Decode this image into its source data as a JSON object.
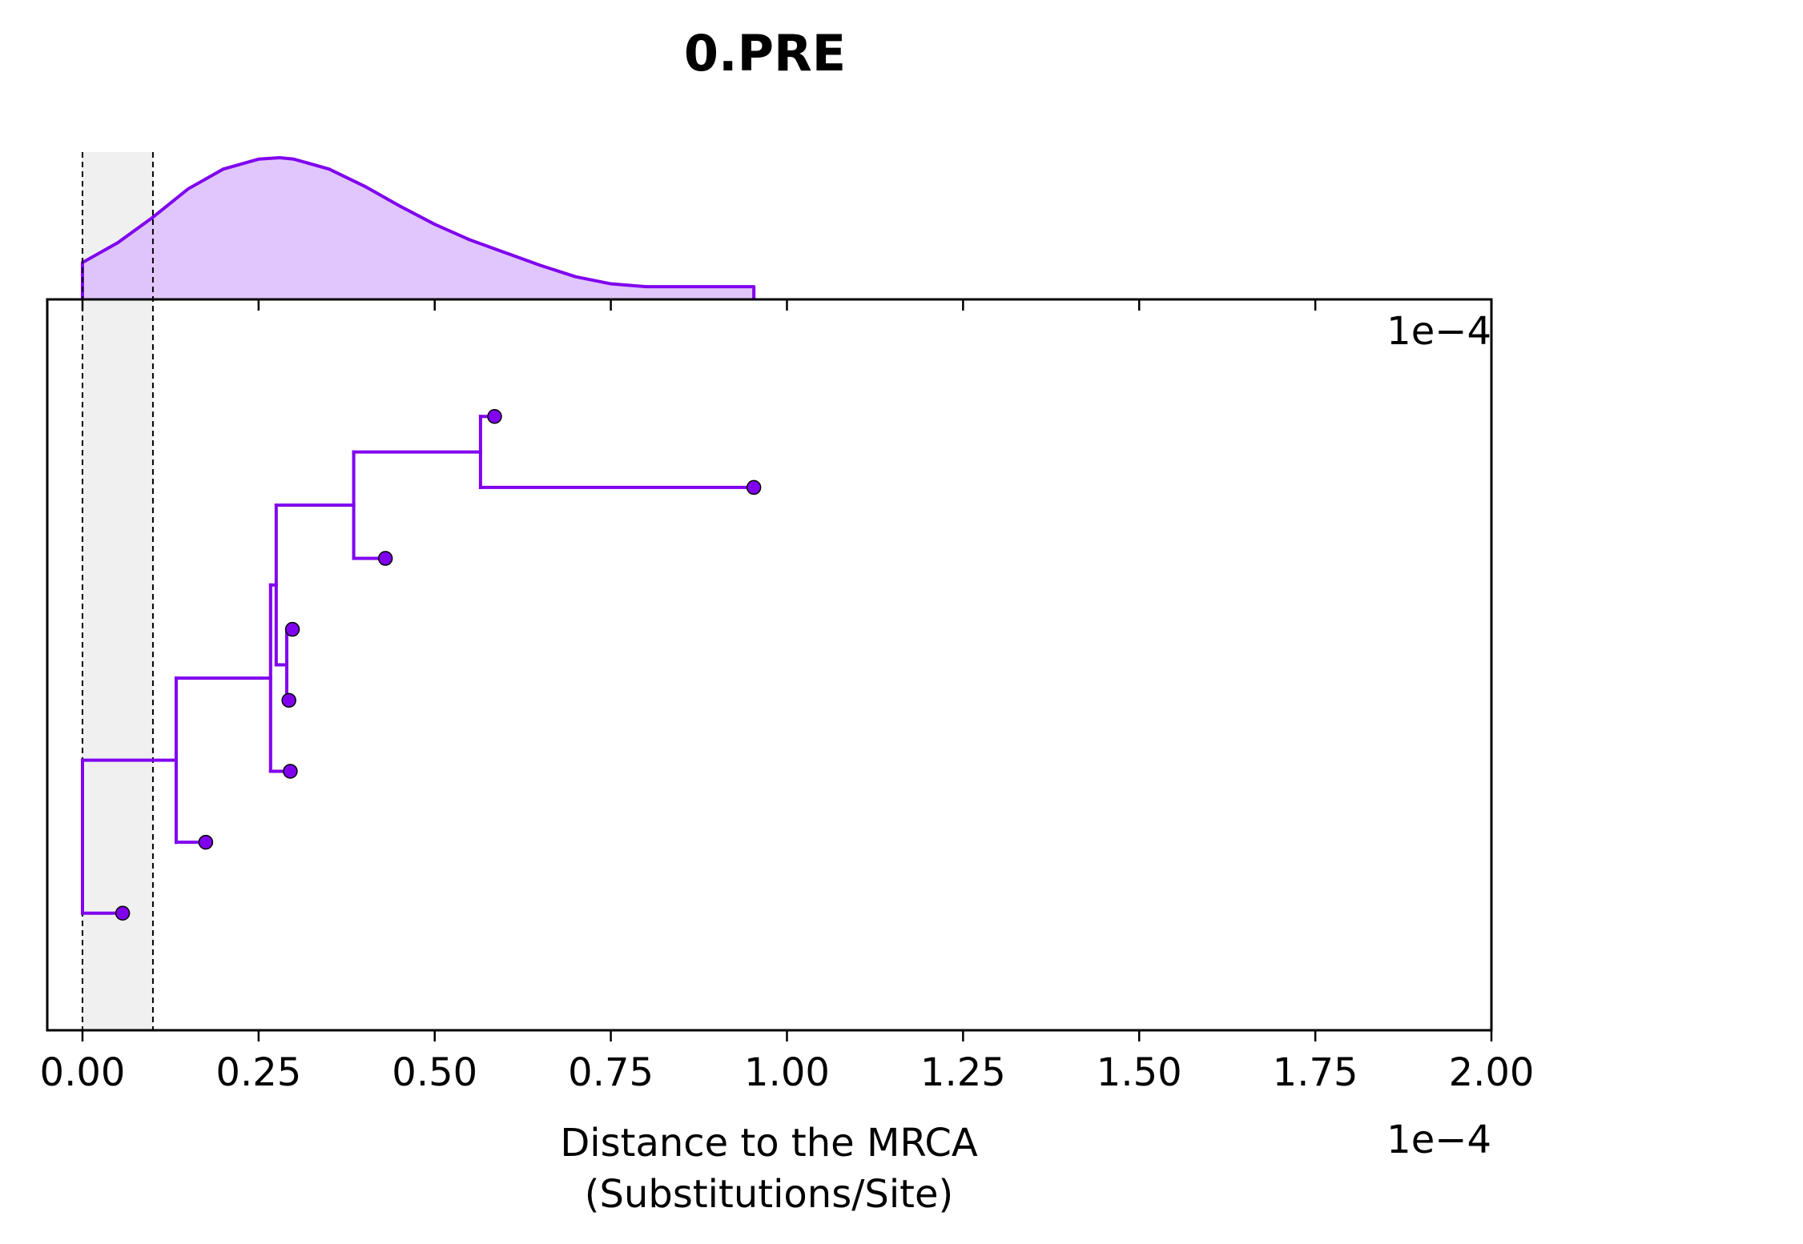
{
  "chart_data": {
    "type": "scatter",
    "subtype": "phylogenetic-tree-with-density",
    "title": "0.PRE",
    "xlabel_line1": "Distance to the MRCA",
    "xlabel_line2": "(Substitutions/Site)",
    "x_offset_label": "1e−4",
    "top_offset_label": "1e−4",
    "xlim": [
      -0.05,
      2.0
    ],
    "x_ticks": [
      0.0,
      0.25,
      0.5,
      0.75,
      1.0,
      1.25,
      1.5,
      1.75,
      2.0
    ],
    "x_tick_labels": [
      "0.00",
      "0.25",
      "0.50",
      "0.75",
      "1.00",
      "1.25",
      "1.50",
      "1.75",
      "2.00"
    ],
    "shaded_interval": [
      0.0,
      0.1
    ],
    "color": "#8000ee",
    "density_fill": "#dcbcfb",
    "shade_fill": "#f0f0f0",
    "tips": [
      {
        "x": 0.585,
        "y": 1
      },
      {
        "x": 0.953,
        "y": 2
      },
      {
        "x": 0.43,
        "y": 3
      },
      {
        "x": 0.298,
        "y": 4
      },
      {
        "x": 0.293,
        "y": 5
      },
      {
        "x": 0.295,
        "y": 6
      },
      {
        "x": 0.175,
        "y": 7
      },
      {
        "x": 0.057,
        "y": 8
      }
    ],
    "nodes": [
      {
        "x": 0.565,
        "y0": 1,
        "y1": 2
      },
      {
        "x": 0.385,
        "y0": 1.5,
        "y1": 3
      },
      {
        "x": 0.29,
        "y0": 4,
        "y1": 5
      },
      {
        "x": 0.275,
        "y0": 2.25,
        "y1": 4.5
      },
      {
        "x": 0.267,
        "y0": 3.375,
        "y1": 6
      },
      {
        "x": 0.133,
        "y0": 4.6875,
        "y1": 7
      },
      {
        "x": 0.0,
        "y0": 5.84375,
        "y1": 8
      }
    ],
    "branches": [
      {
        "x0": 0.565,
        "x1": 0.585,
        "y": 1
      },
      {
        "x0": 0.565,
        "x1": 0.953,
        "y": 2
      },
      {
        "x0": 0.385,
        "x1": 0.565,
        "y": 1.5
      },
      {
        "x0": 0.385,
        "x1": 0.43,
        "y": 3
      },
      {
        "x0": 0.29,
        "x1": 0.298,
        "y": 4
      },
      {
        "x0": 0.29,
        "x1": 0.293,
        "y": 5
      },
      {
        "x0": 0.275,
        "x1": 0.385,
        "y": 2.25
      },
      {
        "x0": 0.275,
        "x1": 0.29,
        "y": 4.5
      },
      {
        "x0": 0.267,
        "x1": 0.275,
        "y": 3.375
      },
      {
        "x0": 0.267,
        "x1": 0.295,
        "y": 6
      },
      {
        "x0": 0.133,
        "x1": 0.267,
        "y": 4.6875
      },
      {
        "x0": 0.133,
        "x1": 0.175,
        "y": 7
      },
      {
        "x0": 0.0,
        "x1": 0.133,
        "y": 5.84375
      },
      {
        "x0": 0.0,
        "x1": 0.057,
        "y": 8
      }
    ],
    "ylim": [
      -0.65,
      9.65
    ],
    "density": {
      "x": [
        0.0,
        0.05,
        0.1,
        0.15,
        0.2,
        0.25,
        0.28,
        0.3,
        0.35,
        0.4,
        0.45,
        0.5,
        0.55,
        0.6,
        0.65,
        0.7,
        0.75,
        0.8,
        0.85,
        0.9,
        0.953
      ],
      "y": [
        0.26,
        0.4,
        0.58,
        0.78,
        0.92,
        0.99,
        1.0,
        0.99,
        0.92,
        0.8,
        0.66,
        0.53,
        0.42,
        0.33,
        0.24,
        0.16,
        0.11,
        0.09,
        0.09,
        0.09,
        0.09
      ]
    }
  }
}
